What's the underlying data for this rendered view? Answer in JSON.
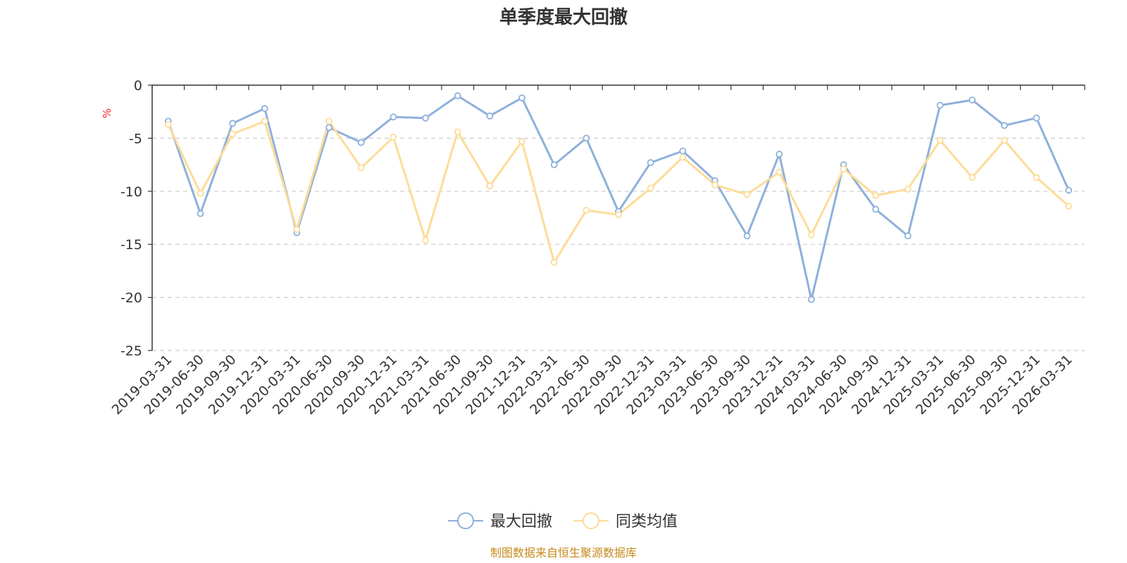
{
  "chart_data": {
    "type": "line",
    "title": "单季度最大回撤",
    "ylabel": "%",
    "xlabel": "",
    "ylim": [
      -25,
      0
    ],
    "yticks": [
      0,
      -5,
      -10,
      -15,
      -20,
      -25
    ],
    "ytick_labels": [
      "0",
      "-5",
      "-10",
      "-15",
      "-20",
      "-25"
    ],
    "grid": true,
    "legend_position": "bottom",
    "categories": [
      "2019-03-31",
      "2019-06-30",
      "2019-09-30",
      "2019-12-31",
      "2020-03-31",
      "2020-06-30",
      "2020-09-30",
      "2020-12-31",
      "2021-03-31",
      "2021-06-30",
      "2021-09-30",
      "2021-12-31",
      "2022-03-31",
      "2022-06-30",
      "2022-09-30",
      "2022-12-31",
      "2023-03-31",
      "2023-06-30",
      "2023-09-30",
      "2023-12-31",
      "2024-03-31",
      "2024-06-30",
      "2024-09-30",
      "2024-12-31",
      "2025-03-31",
      "2025-06-30",
      "2025-09-30",
      "2025-12-31",
      "2026-03-31"
    ],
    "series": [
      {
        "name": "最大回撤",
        "color": "#8eb0dc",
        "values": [
          -3.4,
          -12.1,
          -3.6,
          -2.2,
          -13.9,
          -4.0,
          -5.4,
          -3.0,
          -3.1,
          -1.0,
          -2.9,
          -1.2,
          -7.5,
          -5.0,
          -11.9,
          -7.3,
          -6.2,
          -9.0,
          -14.2,
          -6.5,
          -20.2,
          -7.5,
          -11.7,
          -14.2,
          -1.9,
          -1.4,
          -3.8,
          -3.1,
          -9.9
        ]
      },
      {
        "name": "同类均值",
        "color": "#fddc98",
        "values": [
          -3.7,
          -10.2,
          -4.6,
          -3.4,
          -13.6,
          -3.4,
          -7.8,
          -4.9,
          -14.6,
          -4.4,
          -9.5,
          -5.3,
          -16.7,
          -11.8,
          -12.2,
          -9.7,
          -6.8,
          -9.4,
          -10.3,
          -8.2,
          -14.1,
          -7.9,
          -10.4,
          -9.8,
          -5.2,
          -8.7,
          -5.2,
          -8.7,
          -11.4
        ]
      }
    ]
  },
  "footer": {
    "source": "制图数据来自恒生聚源数据库"
  }
}
